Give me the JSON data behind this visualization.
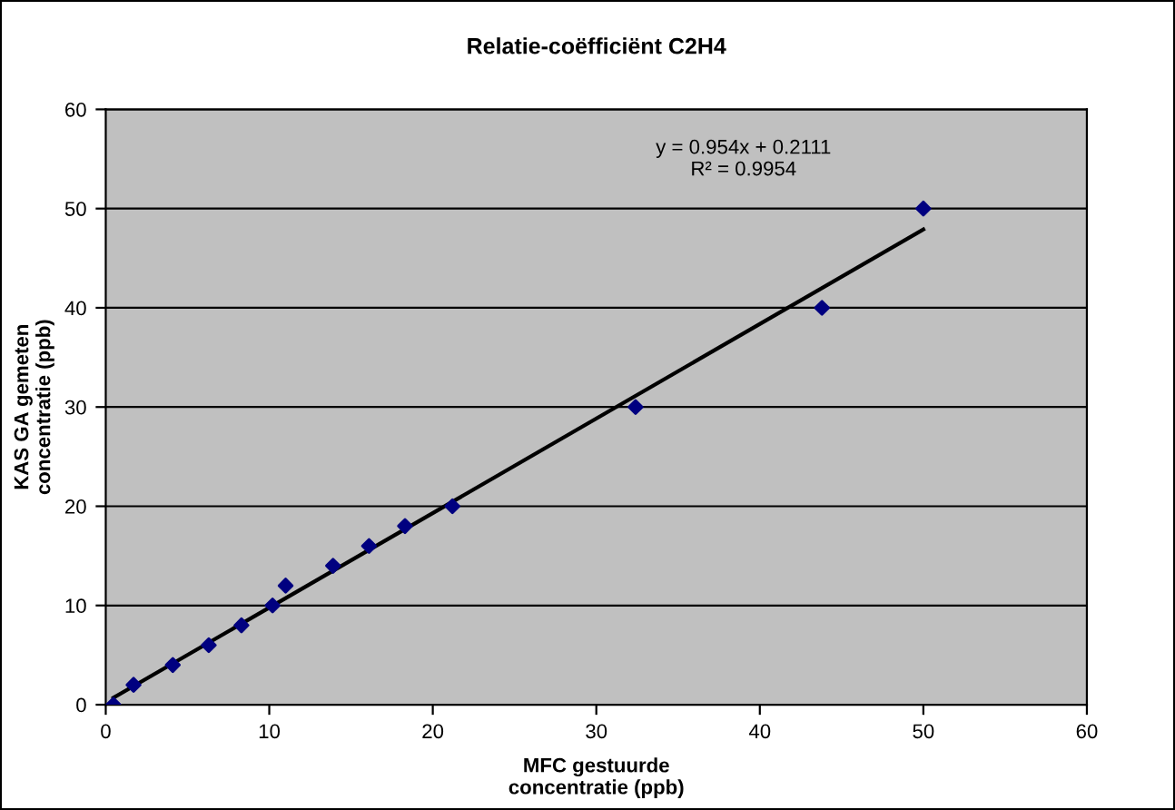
{
  "chart_data": {
    "type": "scatter",
    "title": "Relatie-coëfficiënt C2H4",
    "xlabel": "MFC gestuurde\nconcentratie (ppb)",
    "ylabel": "KAS GA gemeten\nconcentratie (ppb)",
    "series": [
      {
        "color": "#000080",
        "marker": "diamond",
        "x": [
          0.47,
          1.7,
          4.1,
          6.3,
          8.3,
          10.2,
          11.0,
          13.9,
          16.1,
          18.3,
          21.2,
          32.4,
          43.8,
          50.0
        ],
        "values": [
          0,
          2,
          4,
          6,
          8,
          10,
          12,
          14,
          16,
          18,
          20,
          30,
          40,
          50
        ]
      },
      {
        "type": "line",
        "color": "#000000",
        "marker": "none",
        "line_style": "solid",
        "x": [
          0.47,
          50.0
        ],
        "values": [
          0.7,
          47.9
        ]
      }
    ],
    "annotations": [
      "y = 0.954x + 0.2111\nR² = 0.9954"
    ],
    "xlim": [
      0,
      60
    ],
    "ylim": [
      0,
      60
    ],
    "xticks": [
      0,
      10,
      20,
      30,
      40,
      50,
      60
    ],
    "yticks": [
      0,
      10,
      20,
      30,
      40,
      50,
      60
    ],
    "grid": "y",
    "legend": false
  }
}
